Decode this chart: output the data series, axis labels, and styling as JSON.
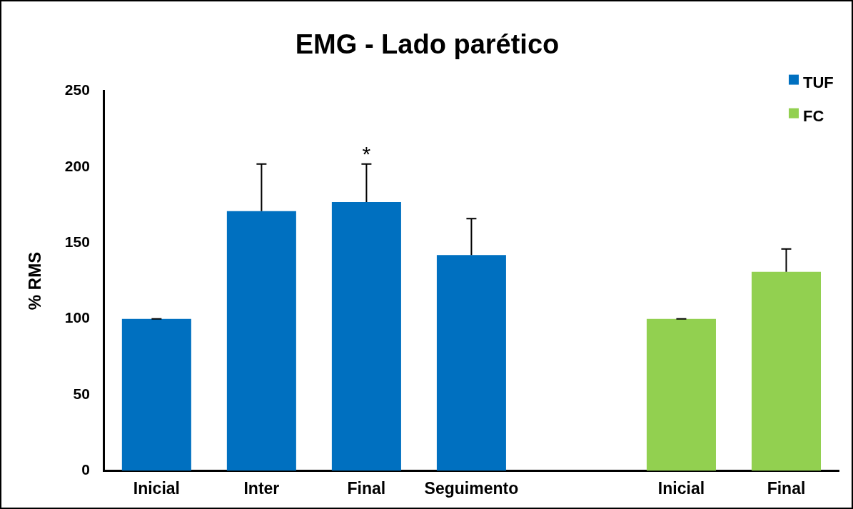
{
  "chart_data": {
    "type": "bar",
    "title": "EMG - Lado parético",
    "ylabel": "% RMS",
    "categories": [
      "Inicial",
      "Inter",
      "Final",
      "Seguimento",
      null,
      "Inicial",
      "Final"
    ],
    "series": [
      {
        "name": "TUF",
        "color": "#0070c0",
        "values": [
          100,
          171,
          177,
          142,
          null,
          null,
          null
        ],
        "errors": [
          0,
          31,
          25,
          24,
          null,
          null,
          null
        ]
      },
      {
        "name": "FC",
        "color": "#92d050",
        "values": [
          null,
          null,
          null,
          null,
          null,
          100,
          131
        ],
        "errors": [
          null,
          null,
          null,
          null,
          null,
          0,
          15
        ]
      }
    ],
    "ylim": [
      0,
      250
    ],
    "yticks": [
      0,
      50,
      100,
      150,
      200,
      250
    ],
    "grid": false,
    "legend": "top right",
    "annotations": [
      "*"
    ]
  }
}
